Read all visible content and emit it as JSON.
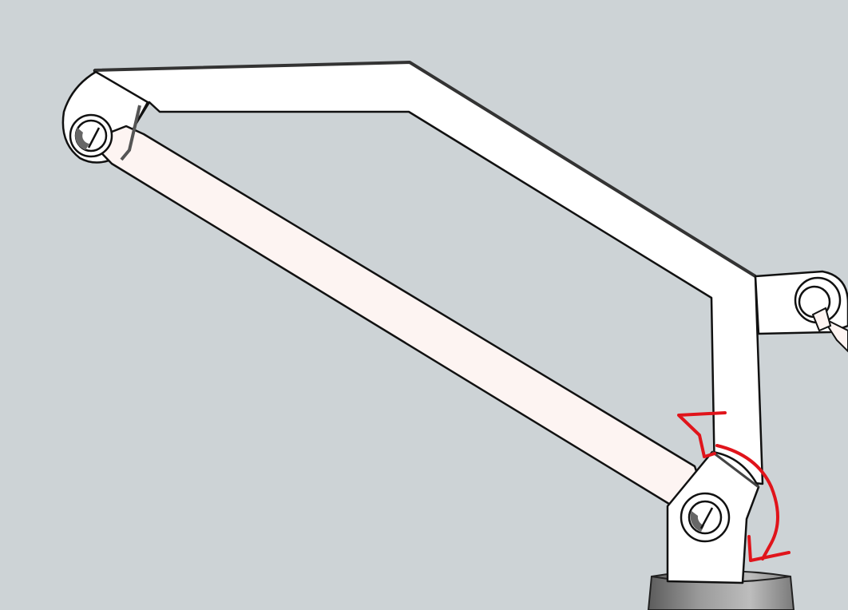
{
  "scene": {
    "background_color": "#cdd3d6",
    "part_fill": "#ffffff",
    "link_fill": "#fdf4f2",
    "outline_color": "#111111",
    "base_fill": "#8c8c8c",
    "annotation_color": "#e0141b"
  },
  "parts": {
    "upper_arm": "upper-arm",
    "lower_link": "lower-link",
    "base_bracket": "base-bracket",
    "right_bracket": "right-bracket",
    "base_cylinder": "base-cylinder"
  },
  "joints": [
    "pivot-left",
    "pivot-bottom",
    "pivot-right"
  ],
  "annotations": [
    "rotation-arrow"
  ]
}
